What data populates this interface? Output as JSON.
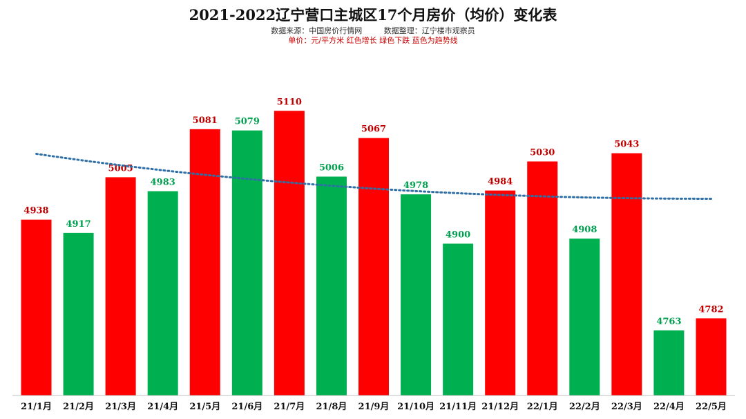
{
  "chart_data": {
    "type": "bar",
    "title": "2021-2022辽宁营口主城区17个月房价（均价）变化表",
    "source": "数据来源：中国房价行情网",
    "compiler": "数据整理：辽宁楼市观察员",
    "unit_note": "单价：元/平方米  红色增长  绿色下跌  蓝色为趋势线",
    "categories": [
      "21/1月",
      "21/2月",
      "21/3月",
      "21/4月",
      "21/5月",
      "21/6月",
      "21/7月",
      "21/8月",
      "21/9月",
      "21/10月",
      "21/11月",
      "21/12月",
      "22/1月",
      "22/2月",
      "22/3月",
      "22/4月",
      "22/5月"
    ],
    "values": [
      4938,
      4917,
      5005,
      4983,
      5081,
      5079,
      5110,
      5006,
      5067,
      4978,
      4900,
      4984,
      5030,
      4908,
      5043,
      4763,
      4782
    ],
    "bar_colors": [
      "red",
      "green",
      "red",
      "green",
      "red",
      "green",
      "red",
      "green",
      "red",
      "green",
      "green",
      "red",
      "red",
      "green",
      "red",
      "green",
      "red"
    ],
    "trendline": {
      "type": "dotted",
      "color": "#2e6fa8",
      "start": 5042,
      "end": 4971
    },
    "ylim": [
      4660,
      5130
    ],
    "grid": false,
    "legend": "none"
  },
  "colors": {
    "up": "#fe0000",
    "down": "#00b050",
    "up_label": "#c00000",
    "down_label": "#00a050",
    "trend": "#2e6fa8"
  }
}
